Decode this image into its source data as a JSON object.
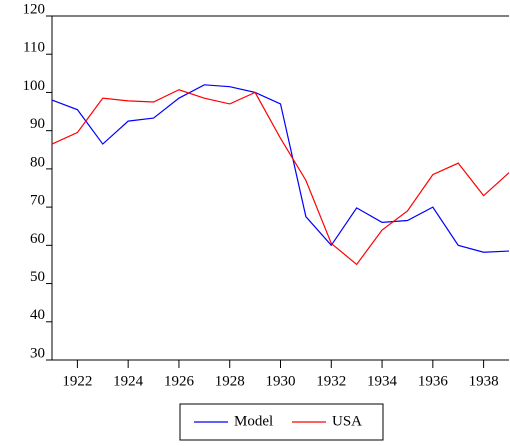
{
  "chart_data": {
    "type": "line",
    "x": [
      1921,
      1922,
      1923,
      1924,
      1925,
      1926,
      1927,
      1928,
      1929,
      1930,
      1931,
      1932,
      1933,
      1934,
      1935,
      1936,
      1937,
      1938,
      1939
    ],
    "series": [
      {
        "name": "Model",
        "color": "#0000ff",
        "values": [
          98,
          95.5,
          86.5,
          92.5,
          93.3,
          98.5,
          102,
          101.5,
          100,
          97,
          67.5,
          60,
          69.8,
          66,
          66.5,
          70,
          60,
          58.2,
          58.5
        ]
      },
      {
        "name": "USA",
        "color": "#ff0000",
        "values": [
          86.5,
          89.5,
          98.5,
          97.8,
          97.5,
          100.7,
          98.5,
          97,
          100,
          88,
          77,
          60.5,
          55,
          64,
          69,
          78.5,
          81.5,
          73,
          79
        ]
      }
    ],
    "xlim": [
      1921,
      1939
    ],
    "xticks": [
      1922,
      1924,
      1926,
      1928,
      1930,
      1932,
      1934,
      1936,
      1938
    ],
    "ylim": [
      30,
      120
    ],
    "yticks": [
      30,
      40,
      50,
      60,
      70,
      80,
      90,
      100,
      110,
      120
    ],
    "legend": "bottom"
  }
}
